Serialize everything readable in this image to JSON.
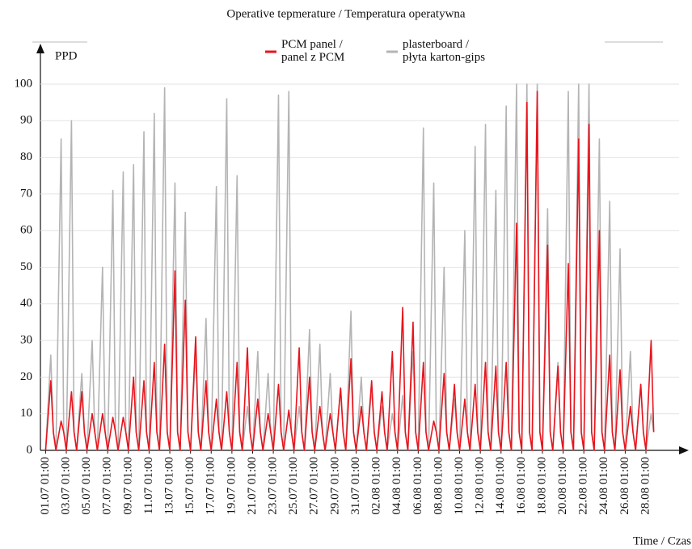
{
  "chart_data": {
    "type": "line",
    "title": "Operative tepmerature / Temperatura operatywna",
    "y_label": "PPD",
    "x_label": "Time / Czas",
    "grid": true,
    "xlim": [
      -0.5,
      61.2
    ],
    "ylim": [
      0,
      100
    ],
    "yticks": [
      0,
      10,
      20,
      30,
      40,
      50,
      60,
      70,
      80,
      90,
      100
    ],
    "xticks": [
      {
        "value": 0,
        "label": "01.07 01:00"
      },
      {
        "value": 2,
        "label": "03.07 01:00"
      },
      {
        "value": 4,
        "label": "05.07 01:00"
      },
      {
        "value": 6,
        "label": "07.07 01:00"
      },
      {
        "value": 8,
        "label": "09.07 01:00"
      },
      {
        "value": 10,
        "label": "11.07 01:00"
      },
      {
        "value": 12,
        "label": "13.07 01:00"
      },
      {
        "value": 14,
        "label": "15.07 01:00"
      },
      {
        "value": 16,
        "label": "17.07 01:00"
      },
      {
        "value": 18,
        "label": "19.07 01:00"
      },
      {
        "value": 20,
        "label": "21.07 01:00"
      },
      {
        "value": 22,
        "label": "23.07 01:00"
      },
      {
        "value": 24,
        "label": "25.07 01:00"
      },
      {
        "value": 26,
        "label": "27.07 01:00"
      },
      {
        "value": 28,
        "label": "29.07 01:00"
      },
      {
        "value": 30,
        "label": "31.07 01:00"
      },
      {
        "value": 32,
        "label": "02.08 01:00"
      },
      {
        "value": 34,
        "label": "04.08 01:00"
      },
      {
        "value": 36,
        "label": "06.08 01:00"
      },
      {
        "value": 38,
        "label": "08.08 01:00"
      },
      {
        "value": 40,
        "label": "10.08 01:00"
      },
      {
        "value": 42,
        "label": "12.08 01:00"
      },
      {
        "value": 44,
        "label": "14.08 01:00"
      },
      {
        "value": 46,
        "label": "16.08 01:00"
      },
      {
        "value": 48,
        "label": "18.08 01:00"
      },
      {
        "value": 50,
        "label": "20.08 01:00"
      },
      {
        "value": 52,
        "label": "22.08 01:00"
      },
      {
        "value": 54,
        "label": "24.08 01:00"
      },
      {
        "value": 56,
        "label": "26.08 01:00"
      },
      {
        "value": 58,
        "label": "28.08 01:00"
      }
    ],
    "x": [
      0,
      0.5,
      0.75,
      1,
      1.5,
      1.75,
      2,
      2.5,
      2.75,
      3,
      3.5,
      3.75,
      4,
      4.5,
      4.75,
      5,
      5.5,
      5.75,
      6,
      6.5,
      6.75,
      7,
      7.5,
      7.75,
      8,
      8.5,
      8.75,
      9,
      9.5,
      9.75,
      10,
      10.5,
      10.75,
      11,
      11.5,
      11.75,
      12,
      12.5,
      12.75,
      13,
      13.5,
      13.75,
      14,
      14.5,
      14.75,
      15,
      15.5,
      15.75,
      16,
      16.5,
      16.75,
      17,
      17.5,
      17.75,
      18,
      18.5,
      18.75,
      19,
      19.5,
      19.75,
      20,
      20.5,
      20.75,
      21,
      21.5,
      21.75,
      22,
      22.5,
      22.75,
      23,
      23.5,
      23.75,
      24,
      24.5,
      24.75,
      25,
      25.5,
      25.75,
      26,
      26.5,
      26.75,
      27,
      27.5,
      27.75,
      28,
      28.5,
      28.75,
      29,
      29.5,
      29.75,
      30,
      30.5,
      30.75,
      31,
      31.5,
      31.75,
      32,
      32.5,
      32.75,
      33,
      33.5,
      33.75,
      34,
      34.5,
      34.75,
      35,
      35.5,
      35.75,
      36,
      36.5,
      36.75,
      37,
      37.5,
      37.75,
      38,
      38.5,
      38.75,
      39,
      39.5,
      39.75,
      40,
      40.5,
      40.75,
      41,
      41.5,
      41.75,
      42,
      42.5,
      42.75,
      43,
      43.5,
      43.75,
      44,
      44.5,
      44.75,
      45,
      45.5,
      45.75,
      46,
      46.5,
      46.75,
      47,
      47.5,
      47.75,
      48,
      48.5,
      48.75,
      49,
      49.5,
      49.75,
      50,
      50.5,
      50.75,
      51,
      51.5,
      51.75,
      52,
      52.5,
      52.75,
      53,
      53.5,
      53.75,
      54,
      54.5,
      54.75,
      55,
      55.5,
      55.75,
      56,
      56.5,
      56.75,
      57,
      57.5,
      57.75,
      58,
      58.5,
      58.75
    ],
    "series": [
      {
        "name": "plasterboard /\npłyta karton-gips",
        "color": "#b4b4b4",
        "values": [
          0,
          26,
          5,
          0,
          85,
          5,
          0,
          90,
          5,
          0,
          21,
          5,
          0,
          30,
          5,
          0,
          50,
          5,
          0,
          71,
          5,
          0,
          76,
          5,
          0,
          78,
          5,
          0,
          87,
          5,
          0,
          92,
          5,
          0,
          99,
          5,
          0,
          73,
          5,
          0,
          65,
          5,
          0,
          27,
          5,
          0,
          36,
          5,
          0,
          72,
          5,
          0,
          96,
          5,
          0,
          75,
          5,
          0,
          12,
          5,
          0,
          27,
          5,
          0,
          21,
          5,
          0,
          97,
          5,
          0,
          98,
          5,
          0,
          12,
          5,
          0,
          33,
          5,
          0,
          29,
          5,
          0,
          21,
          5,
          0,
          17,
          5,
          0,
          38,
          5,
          0,
          20,
          5,
          0,
          17,
          5,
          0,
          12,
          5,
          0,
          10,
          5,
          0,
          15,
          5,
          0,
          27,
          5,
          0,
          88,
          5,
          0,
          73,
          5,
          0,
          50,
          5,
          0,
          14,
          5,
          0,
          60,
          5,
          0,
          83,
          5,
          0,
          89,
          5,
          0,
          71,
          5,
          0,
          94,
          5,
          0,
          100,
          5,
          0,
          100,
          5,
          0,
          100,
          5,
          0,
          66,
          5,
          0,
          24,
          5,
          0,
          98,
          5,
          0,
          100,
          5,
          0,
          100,
          5,
          0,
          85,
          5,
          0,
          68,
          5,
          0,
          55,
          5,
          0,
          27,
          5,
          0,
          18,
          5,
          0,
          10,
          5
        ]
      },
      {
        "name": "PCM panel /\npanel z PCM",
        "color": "#e8141c",
        "values": [
          0,
          19,
          5,
          0,
          8,
          5,
          0,
          16,
          5,
          0,
          16,
          5,
          0,
          10,
          5,
          0,
          10,
          5,
          0,
          9,
          5,
          0,
          9,
          5,
          0,
          20,
          5,
          0,
          19,
          5,
          0,
          24,
          5,
          0,
          29,
          5,
          0,
          49,
          5,
          0,
          41,
          5,
          0,
          31,
          5,
          0,
          19,
          5,
          0,
          14,
          5,
          0,
          16,
          5,
          0,
          24,
          5,
          0,
          28,
          5,
          0,
          14,
          5,
          0,
          10,
          5,
          0,
          18,
          5,
          0,
          11,
          5,
          0,
          28,
          5,
          0,
          20,
          5,
          0,
          12,
          5,
          0,
          10,
          5,
          0,
          17,
          5,
          0,
          25,
          5,
          0,
          12,
          5,
          0,
          19,
          5,
          0,
          16,
          5,
          0,
          27,
          5,
          0,
          39,
          5,
          0,
          35,
          5,
          0,
          24,
          5,
          0,
          8,
          5,
          0,
          21,
          5,
          0,
          18,
          5,
          0,
          14,
          5,
          0,
          18,
          5,
          0,
          24,
          5,
          0,
          23,
          5,
          0,
          24,
          5,
          0,
          62,
          5,
          0,
          95,
          5,
          0,
          98,
          5,
          0,
          56,
          5,
          0,
          23,
          5,
          0,
          51,
          5,
          0,
          85,
          5,
          0,
          89,
          5,
          0,
          60,
          5,
          0,
          26,
          5,
          0,
          22,
          5,
          0,
          12,
          5,
          0,
          18,
          5,
          0,
          30,
          5
        ]
      }
    ]
  }
}
